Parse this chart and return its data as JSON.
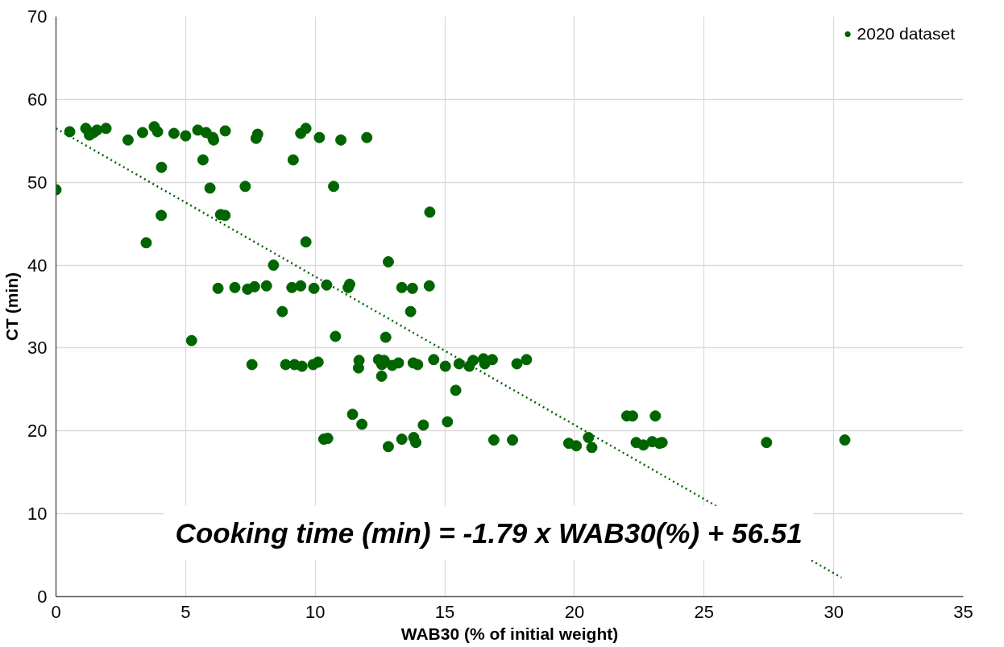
{
  "chart_data": {
    "type": "scatter",
    "xlabel": "WAB30 (% of initial weight)",
    "ylabel": "CT (min)",
    "xlim": [
      0,
      35
    ],
    "xticks": [
      0,
      5,
      10,
      15,
      20,
      25,
      30,
      35
    ],
    "ylim": [
      0,
      70
    ],
    "yticks": [
      0,
      10,
      20,
      30,
      40,
      50,
      60,
      70
    ],
    "grid": true,
    "legend": "top right",
    "marker": "circle",
    "annotations": [
      "Cooking time (min) = -1.79 x WAB30(%) + 56.51"
    ],
    "series": [
      {
        "name": "2020 dataset",
        "color": "#006400",
        "x": [
          0.0,
          0.53,
          1.15,
          1.29,
          1.45,
          1.58,
          1.93,
          2.78,
          3.34,
          3.79,
          3.92,
          4.55,
          5.0,
          5.47,
          5.79,
          6.05,
          6.08,
          6.53,
          7.78,
          7.72,
          9.44,
          9.64,
          10.16,
          10.99,
          11.99,
          4.07,
          5.67,
          9.15,
          5.94,
          7.3,
          10.71,
          4.06,
          6.35,
          6.52,
          14.42,
          3.48,
          9.64,
          8.39,
          6.25,
          6.9,
          7.39,
          7.66,
          8.12,
          9.1,
          9.44,
          9.95,
          10.44,
          11.27,
          11.33,
          8.73,
          5.23,
          10.78,
          7.56,
          8.86,
          9.2,
          9.49,
          9.92,
          10.11,
          11.69,
          11.67,
          12.82,
          13.34,
          13.75,
          14.4,
          13.68,
          12.72,
          12.44,
          12.66,
          12.57,
          12.97,
          13.21,
          13.78,
          13.95,
          14.57,
          15.02,
          15.55,
          15.94,
          16.09,
          16.49,
          16.54,
          16.83,
          17.78,
          18.15,
          12.56,
          15.42,
          11.44,
          11.8,
          14.17,
          15.1,
          10.33,
          10.48,
          12.82,
          13.34,
          13.8,
          13.88,
          16.89,
          17.61,
          22.02,
          22.24,
          23.12,
          19.78,
          20.07,
          20.54,
          20.67,
          22.38,
          22.66,
          23.0,
          23.28,
          23.38,
          27.41,
          30.43
        ],
        "values": [
          49.1,
          56.1,
          56.5,
          55.7,
          56.0,
          56.3,
          56.5,
          55.1,
          56.0,
          56.7,
          56.1,
          55.9,
          55.6,
          56.3,
          56.0,
          55.4,
          55.1,
          56.2,
          55.8,
          55.3,
          55.9,
          56.5,
          55.4,
          55.1,
          55.4,
          51.8,
          52.7,
          52.7,
          49.3,
          49.5,
          49.5,
          46.0,
          46.1,
          46.0,
          46.4,
          42.7,
          42.8,
          40.0,
          37.2,
          37.3,
          37.1,
          37.4,
          37.5,
          37.3,
          37.5,
          37.2,
          37.6,
          37.3,
          37.7,
          34.4,
          30.9,
          31.4,
          28.0,
          28.0,
          28.0,
          27.8,
          28.0,
          28.3,
          28.5,
          27.6,
          40.4,
          37.3,
          37.2,
          37.5,
          34.4,
          31.3,
          28.6,
          28.5,
          28.0,
          27.9,
          28.2,
          28.2,
          28.0,
          28.6,
          27.8,
          28.1,
          27.8,
          28.5,
          28.7,
          28.1,
          28.6,
          28.1,
          28.6,
          26.6,
          24.9,
          22.0,
          20.8,
          20.7,
          21.1,
          19.0,
          19.1,
          18.1,
          19.0,
          19.2,
          18.6,
          18.9,
          18.9,
          21.8,
          21.8,
          21.8,
          18.5,
          18.2,
          19.2,
          18.0,
          18.6,
          18.3,
          18.7,
          18.5,
          18.6,
          18.6,
          18.9
        ]
      },
      {
        "color": "#006400",
        "type": "line",
        "line_style": "dotted",
        "marker": "none",
        "x": [
          0,
          30.3
        ],
        "values": [
          56.5,
          2.3
        ]
      }
    ]
  }
}
